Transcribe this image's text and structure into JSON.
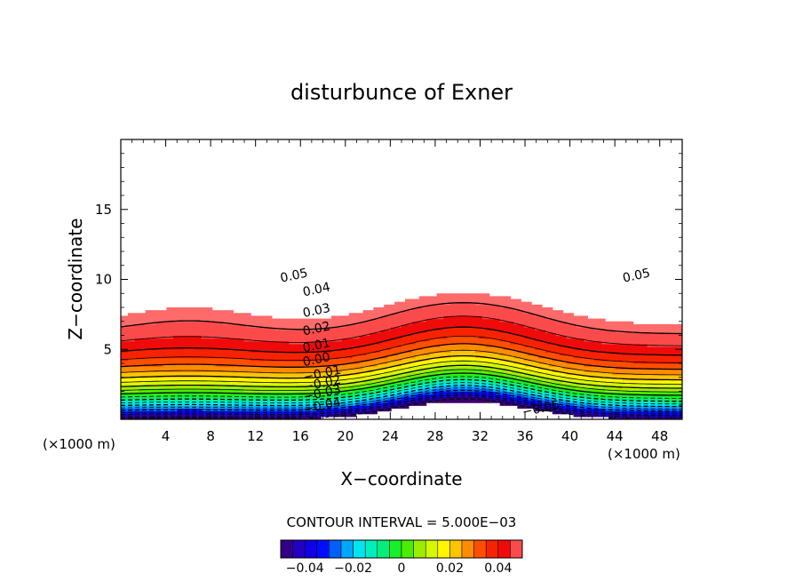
{
  "chart_data": {
    "type": "contour",
    "title": "disturbunce of Exner",
    "xlabel": "X−coordinate",
    "ylabel": "Z−coordinate",
    "x_unit_left": "(×1000 m)",
    "x_unit_right": "(×1000 m)",
    "xlim": [
      0,
      50
    ],
    "ylim": [
      0,
      20
    ],
    "x_ticks": [
      4,
      8,
      12,
      16,
      20,
      24,
      28,
      32,
      36,
      40,
      44,
      48
    ],
    "y_ticks": [
      5,
      10,
      15
    ],
    "contour_interval_text": "CONTOUR INTERVAL = 5.000E−03",
    "contour_interval": 0.005,
    "value_range": [
      -0.05,
      0.05
    ],
    "contour_labels": [
      {
        "text": "0.05",
        "x": 15.5,
        "z": 10.0
      },
      {
        "text": "0.04",
        "x": 17.5,
        "z": 9.0
      },
      {
        "text": "0.03",
        "x": 17.5,
        "z": 7.5
      },
      {
        "text": "0.02",
        "x": 17.5,
        "z": 6.2
      },
      {
        "text": "0.01",
        "x": 17.5,
        "z": 5.0
      },
      {
        "text": "0.00",
        "x": 17.5,
        "z": 4.0
      },
      {
        "text": "−0.01",
        "x": 18.0,
        "z": 3.0
      },
      {
        "text": "−0.02",
        "x": 18.0,
        "z": 2.3
      },
      {
        "text": "−0.03",
        "x": 18.0,
        "z": 1.6
      },
      {
        "text": "−0.04",
        "x": 18.0,
        "z": 0.7
      },
      {
        "text": "0.05",
        "x": 46.0,
        "z": 10.0
      },
      {
        "text": "−0.05",
        "x": 37.5,
        "z": 0.5
      }
    ],
    "colorbar": {
      "tick_labels": [
        "−0.04",
        "−0.02",
        "0",
        "0.02",
        "0.04"
      ],
      "tick_values": [
        -0.04,
        -0.02,
        0,
        0.02,
        0.04
      ],
      "range": [
        -0.05,
        0.05
      ]
    },
    "colormap": [
      "#3a0066",
      "#2200cc",
      "#0000ff",
      "#0088ff",
      "#00eeee",
      "#00ee88",
      "#22ee00",
      "#aaee00",
      "#ffff00",
      "#ffaa00",
      "#ff4400",
      "#ee0000",
      "#ff6a6a"
    ],
    "grid": false,
    "legend": "none"
  }
}
